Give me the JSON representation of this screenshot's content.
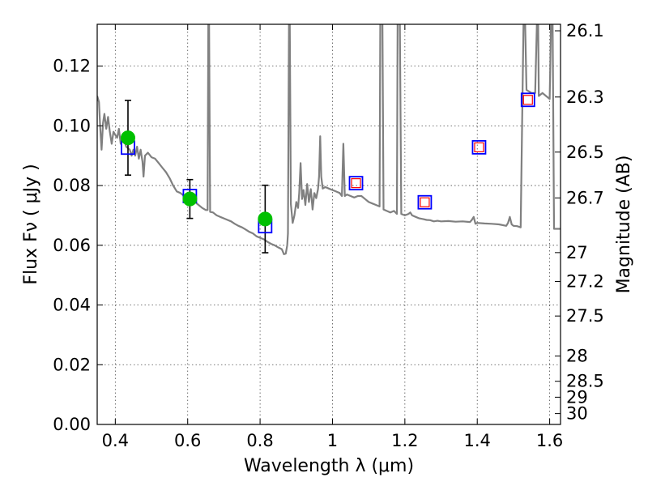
{
  "chart_data": {
    "type": "scatter",
    "title": "",
    "xlabel": "Wavelength  λ (μm)",
    "ylabel": "Flux  Fν  ( μJy )",
    "ylabel_right": "Magnitude (AB)",
    "xlim": [
      0.35,
      1.63
    ],
    "ylim": [
      0.0,
      0.134
    ],
    "grid": true,
    "x_ticks": [
      {
        "value": 0.4,
        "label": "0.4"
      },
      {
        "value": 0.6,
        "label": "0.6"
      },
      {
        "value": 0.8,
        "label": "0.8"
      },
      {
        "value": 1.0,
        "label": "1"
      },
      {
        "value": 1.2,
        "label": "1.2"
      },
      {
        "value": 1.4,
        "label": "1.4"
      },
      {
        "value": 1.6,
        "label": "1.6"
      }
    ],
    "y_ticks": [
      {
        "value": 0.0,
        "label": "0.00"
      },
      {
        "value": 0.02,
        "label": "0.02"
      },
      {
        "value": 0.04,
        "label": "0.04"
      },
      {
        "value": 0.06,
        "label": "0.06"
      },
      {
        "value": 0.08,
        "label": "0.08"
      },
      {
        "value": 0.1,
        "label": "0.10"
      },
      {
        "value": 0.12,
        "label": "0.12"
      }
    ],
    "mag_ticks": [
      {
        "value": 26.1,
        "label": "26.1"
      },
      {
        "value": 26.3,
        "label": "26.3"
      },
      {
        "value": 26.5,
        "label": "26.5"
      },
      {
        "value": 26.7,
        "label": "26.7"
      },
      {
        "value": 27.0,
        "label": "27"
      },
      {
        "value": 27.2,
        "label": "27.2"
      },
      {
        "value": 27.5,
        "label": "27.5"
      },
      {
        "value": 28.0,
        "label": "28"
      },
      {
        "value": 28.5,
        "label": "28.5"
      },
      {
        "value": 29.0,
        "label": "29"
      },
      {
        "value": 30.0,
        "label": "30"
      }
    ],
    "observed": {
      "x": [
        0.435,
        0.606,
        0.814
      ],
      "y": [
        0.096,
        0.0755,
        0.0688
      ],
      "yerr": [
        0.0125,
        0.0065,
        0.0113
      ],
      "color": "#00c000",
      "ecolor": "#000000"
    },
    "model_blue": {
      "x": [
        0.435,
        0.606,
        0.814,
        1.065,
        1.255,
        1.405,
        1.54
      ],
      "y": [
        0.0927,
        0.0765,
        0.0664,
        0.0808,
        0.0744,
        0.0928,
        0.1087
      ],
      "color": "#0000ff"
    },
    "model_red": {
      "x": [
        1.065,
        1.255,
        1.405,
        1.54
      ],
      "y": [
        0.0808,
        0.0744,
        0.0928,
        0.1087
      ],
      "color": "#ff0000"
    },
    "sed": {
      "color": "#808080",
      "points": [
        [
          0.35,
          0.11
        ],
        [
          0.355,
          0.108
        ],
        [
          0.358,
          0.1
        ],
        [
          0.362,
          0.092
        ],
        [
          0.366,
          0.101
        ],
        [
          0.37,
          0.104
        ],
        [
          0.375,
          0.099
        ],
        [
          0.38,
          0.103
        ],
        [
          0.385,
          0.098
        ],
        [
          0.39,
          0.094
        ],
        [
          0.395,
          0.098
        ],
        [
          0.4,
          0.097
        ],
        [
          0.405,
          0.096
        ],
        [
          0.41,
          0.099
        ],
        [
          0.415,
          0.094
        ],
        [
          0.42,
          0.096
        ],
        [
          0.425,
          0.095
        ],
        [
          0.43,
          0.093
        ],
        [
          0.44,
          0.092
        ],
        [
          0.445,
          0.09
        ],
        [
          0.45,
          0.092
        ],
        [
          0.455,
          0.09
        ],
        [
          0.46,
          0.093
        ],
        [
          0.465,
          0.089
        ],
        [
          0.47,
          0.092
        ],
        [
          0.475,
          0.088
        ],
        [
          0.478,
          0.083
        ],
        [
          0.482,
          0.09
        ],
        [
          0.49,
          0.091
        ],
        [
          0.5,
          0.0895
        ],
        [
          0.51,
          0.089
        ],
        [
          0.52,
          0.0875
        ],
        [
          0.53,
          0.086
        ],
        [
          0.54,
          0.0845
        ],
        [
          0.55,
          0.0825
        ],
        [
          0.56,
          0.08
        ],
        [
          0.57,
          0.078
        ],
        [
          0.58,
          0.0775
        ],
        [
          0.59,
          0.0765
        ],
        [
          0.6,
          0.076
        ],
        [
          0.61,
          0.0755
        ],
        [
          0.62,
          0.0745
        ],
        [
          0.63,
          0.0735
        ],
        [
          0.64,
          0.0725
        ],
        [
          0.65,
          0.0718
        ],
        [
          0.655,
          0.0718
        ],
        [
          0.657,
          0.136
        ],
        [
          0.659,
          0.136
        ],
        [
          0.662,
          0.0712
        ],
        [
          0.67,
          0.071
        ],
        [
          0.68,
          0.07
        ],
        [
          0.69,
          0.0695
        ],
        [
          0.7,
          0.069
        ],
        [
          0.71,
          0.0685
        ],
        [
          0.72,
          0.068
        ],
        [
          0.73,
          0.0672
        ],
        [
          0.74,
          0.0665
        ],
        [
          0.75,
          0.066
        ],
        [
          0.76,
          0.0653
        ],
        [
          0.77,
          0.0645
        ],
        [
          0.78,
          0.064
        ],
        [
          0.79,
          0.063
        ],
        [
          0.8,
          0.0625
        ],
        [
          0.81,
          0.062
        ],
        [
          0.82,
          0.0612
        ],
        [
          0.83,
          0.0605
        ],
        [
          0.84,
          0.06
        ],
        [
          0.85,
          0.0593
        ],
        [
          0.86,
          0.0587
        ],
        [
          0.866,
          0.057
        ],
        [
          0.871,
          0.0572
        ],
        [
          0.875,
          0.06
        ],
        [
          0.877,
          0.064
        ],
        [
          0.88,
          0.136
        ],
        [
          0.882,
          0.136
        ],
        [
          0.885,
          0.0738
        ],
        [
          0.89,
          0.0675
        ],
        [
          0.895,
          0.07
        ],
        [
          0.9,
          0.0745
        ],
        [
          0.905,
          0.0725
        ],
        [
          0.908,
          0.0775
        ],
        [
          0.912,
          0.0875
        ],
        [
          0.916,
          0.0755
        ],
        [
          0.92,
          0.0785
        ],
        [
          0.925,
          0.0735
        ],
        [
          0.93,
          0.0805
        ],
        [
          0.935,
          0.0745
        ],
        [
          0.94,
          0.0788
        ],
        [
          0.945,
          0.072
        ],
        [
          0.95,
          0.0775
        ],
        [
          0.955,
          0.0758
        ],
        [
          0.96,
          0.0788
        ],
        [
          0.963,
          0.083
        ],
        [
          0.966,
          0.0965
        ],
        [
          0.969,
          0.083
        ],
        [
          0.973,
          0.079
        ],
        [
          0.98,
          0.0795
        ],
        [
          0.99,
          0.079
        ],
        [
          1.0,
          0.0785
        ],
        [
          1.01,
          0.078
        ],
        [
          1.02,
          0.0775
        ],
        [
          1.026,
          0.0765
        ],
        [
          1.03,
          0.094
        ],
        [
          1.034,
          0.0765
        ],
        [
          1.04,
          0.077
        ],
        [
          1.05,
          0.0765
        ],
        [
          1.06,
          0.076
        ],
        [
          1.07,
          0.0765
        ],
        [
          1.08,
          0.0765
        ],
        [
          1.09,
          0.0755
        ],
        [
          1.1,
          0.0745
        ],
        [
          1.11,
          0.074
        ],
        [
          1.12,
          0.0735
        ],
        [
          1.13,
          0.073
        ],
        [
          1.132,
          0.136
        ],
        [
          1.138,
          0.136
        ],
        [
          1.141,
          0.072
        ],
        [
          1.15,
          0.0715
        ],
        [
          1.16,
          0.071
        ],
        [
          1.17,
          0.0715
        ],
        [
          1.178,
          0.0705
        ],
        [
          1.18,
          0.136
        ],
        [
          1.186,
          0.136
        ],
        [
          1.19,
          0.0705
        ],
        [
          1.2,
          0.07
        ],
        [
          1.21,
          0.0705
        ],
        [
          1.215,
          0.071
        ],
        [
          1.22,
          0.07
        ],
        [
          1.23,
          0.0695
        ],
        [
          1.24,
          0.069
        ],
        [
          1.25,
          0.0688
        ],
        [
          1.26,
          0.0685
        ],
        [
          1.27,
          0.0684
        ],
        [
          1.28,
          0.068
        ],
        [
          1.29,
          0.0682
        ],
        [
          1.3,
          0.068
        ],
        [
          1.32,
          0.0681
        ],
        [
          1.34,
          0.0679
        ],
        [
          1.36,
          0.068
        ],
        [
          1.38,
          0.0678
        ],
        [
          1.385,
          0.0685
        ],
        [
          1.39,
          0.0695
        ],
        [
          1.395,
          0.0672
        ],
        [
          1.4,
          0.0675
        ],
        [
          1.42,
          0.0673
        ],
        [
          1.44,
          0.0672
        ],
        [
          1.46,
          0.067
        ],
        [
          1.48,
          0.0665
        ],
        [
          1.485,
          0.0675
        ],
        [
          1.49,
          0.0695
        ],
        [
          1.495,
          0.067
        ],
        [
          1.5,
          0.0665
        ],
        [
          1.51,
          0.0664
        ],
        [
          1.52,
          0.066
        ],
        [
          1.528,
          0.136
        ],
        [
          1.532,
          0.136
        ],
        [
          1.536,
          0.112
        ],
        [
          1.55,
          0.111
        ],
        [
          1.56,
          0.111
        ],
        [
          1.565,
          0.136
        ],
        [
          1.568,
          0.136
        ],
        [
          1.57,
          0.11
        ],
        [
          1.58,
          0.111
        ],
        [
          1.59,
          0.11
        ],
        [
          1.6,
          0.109
        ],
        [
          1.604,
          0.136
        ],
        [
          1.608,
          0.136
        ],
        [
          1.612,
          0.0655
        ],
        [
          1.625,
          0.0655
        ],
        [
          1.63,
          0.0655
        ]
      ]
    }
  }
}
